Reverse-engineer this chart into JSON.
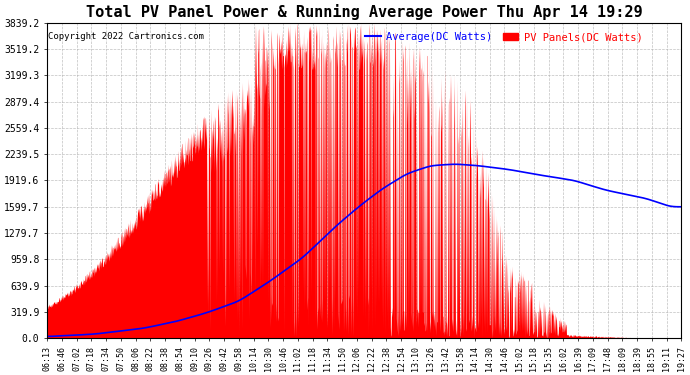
{
  "title": "Total PV Panel Power & Running Average Power Thu Apr 14 19:29",
  "copyright": "Copyright 2022 Cartronics.com",
  "legend_avg": "Average(DC Watts)",
  "legend_pv": "PV Panels(DC Watts)",
  "yticks": [
    0.0,
    319.9,
    639.9,
    959.8,
    1279.7,
    1599.7,
    1919.6,
    2239.5,
    2559.4,
    2879.4,
    3199.3,
    3519.2,
    3839.2
  ],
  "ytick_labels": [
    "0.0",
    "319.9",
    "639.9",
    "959.8",
    "1279.7",
    "1599.7",
    "1919.6",
    "2239.5",
    "2559.4",
    "2879.4",
    "3199.3",
    "3519.2",
    "3839.2"
  ],
  "ylim": [
    0,
    3839.2
  ],
  "bg_color": "#ffffff",
  "plot_bg_color": "#ffffff",
  "grid_color": "#b0b0b0",
  "pv_color": "#ff0000",
  "avg_color": "#0000ff",
  "title_fontsize": 11,
  "xtick_labels": [
    "06:13",
    "06:46",
    "07:02",
    "07:18",
    "07:34",
    "07:50",
    "08:06",
    "08:22",
    "08:38",
    "08:54",
    "09:10",
    "09:26",
    "09:42",
    "09:58",
    "10:14",
    "10:30",
    "10:46",
    "11:02",
    "11:18",
    "11:34",
    "11:50",
    "12:06",
    "12:22",
    "12:38",
    "12:54",
    "13:10",
    "13:26",
    "13:42",
    "13:58",
    "14:14",
    "14:30",
    "14:46",
    "15:02",
    "15:18",
    "15:35",
    "16:02",
    "16:39",
    "17:09",
    "17:48",
    "18:09",
    "18:39",
    "18:55",
    "19:11",
    "19:27"
  ],
  "avg_x": [
    0,
    60,
    120,
    160,
    200,
    240,
    280,
    320,
    360,
    390,
    420,
    450,
    480,
    510,
    540,
    580,
    620,
    660,
    700,
    750,
    780
  ],
  "avg_y": [
    20,
    50,
    120,
    200,
    310,
    450,
    700,
    980,
    1350,
    1600,
    1820,
    2000,
    2100,
    2120,
    2100,
    2050,
    1980,
    1920,
    1800,
    1700,
    1600
  ]
}
